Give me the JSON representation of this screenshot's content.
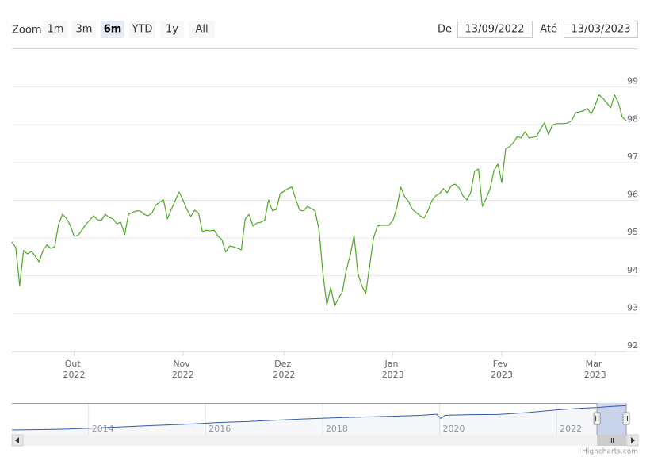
{
  "range_selector": {
    "zoom_label": "Zoom",
    "buttons": [
      "1m",
      "3m",
      "6m",
      "YTD",
      "1y",
      "All"
    ],
    "selected": 2,
    "from_label": "De",
    "from": "13/09/2022",
    "to_label": "Até",
    "to": "13/03/2023"
  },
  "chart_data": {
    "type": "line",
    "color": "#4fa826",
    "values": [
      94.9,
      94.75,
      93.74,
      94.67,
      94.58,
      94.65,
      94.52,
      94.37,
      94.67,
      94.82,
      94.73,
      94.77,
      95.36,
      95.63,
      95.53,
      95.34,
      95.05,
      95.07,
      95.21,
      95.36,
      95.47,
      95.59,
      95.49,
      95.47,
      95.63,
      95.55,
      95.51,
      95.38,
      95.42,
      95.09,
      95.63,
      95.68,
      95.72,
      95.72,
      95.63,
      95.59,
      95.66,
      95.87,
      95.95,
      96.01,
      95.51,
      95.76,
      95.99,
      96.22,
      96.01,
      95.76,
      95.57,
      95.74,
      95.66,
      95.17,
      95.21,
      95.19,
      95.21,
      95.05,
      94.96,
      94.63,
      94.79,
      94.77,
      94.73,
      94.69,
      95.51,
      95.63,
      95.32,
      95.4,
      95.42,
      95.47,
      96.01,
      95.72,
      95.76,
      96.18,
      96.24,
      96.31,
      96.35,
      96.03,
      95.74,
      95.72,
      95.84,
      95.78,
      95.72,
      95.21,
      94.06,
      93.22,
      93.7,
      93.2,
      93.41,
      93.58,
      94.16,
      94.54,
      95.07,
      94.06,
      93.74,
      93.53,
      94.25,
      95.0,
      95.32,
      95.34,
      95.34,
      95.34,
      95.47,
      95.8,
      96.35,
      96.1,
      95.97,
      95.76,
      95.68,
      95.59,
      95.53,
      95.72,
      95.99,
      96.12,
      96.18,
      96.31,
      96.2,
      96.39,
      96.43,
      96.33,
      96.12,
      96.01,
      96.2,
      96.77,
      96.83,
      95.84,
      96.05,
      96.31,
      96.79,
      96.96,
      96.47,
      97.36,
      97.42,
      97.53,
      97.69,
      97.65,
      97.82,
      97.65,
      97.67,
      97.69,
      97.9,
      98.05,
      97.74,
      97.99,
      98.03,
      98.03,
      98.03,
      98.05,
      98.11,
      98.32,
      98.34,
      98.37,
      98.43,
      98.28,
      98.51,
      98.79,
      98.7,
      98.58,
      98.45,
      98.79,
      98.58,
      98.2,
      98.11
    ],
    "xlim": [
      0,
      158
    ],
    "ylim": [
      92,
      100
    ],
    "yticks": [
      92,
      93,
      94,
      95,
      96,
      97,
      98,
      99
    ],
    "grid": true,
    "xticks": [
      {
        "value": 16,
        "label": "Out 2022"
      },
      {
        "value": 44,
        "label": "Nov 2022"
      },
      {
        "value": 70,
        "label": "Dez 2022"
      },
      {
        "value": 98,
        "label": "Jan 2023"
      },
      {
        "value": 126,
        "label": "Fev 2023"
      },
      {
        "value": 150,
        "label": "Mar 2023"
      }
    ],
    "navigator": {
      "color": "#335cad",
      "x": [
        2012.69,
        2013.5,
        2014.2,
        2015,
        2015.7,
        2016.2,
        2016.7,
        2017.2,
        2017.7,
        2018.2,
        2018.7,
        2019.2,
        2019.7,
        2019.95,
        2020.02,
        2020.1,
        2020.5,
        2021,
        2021.5,
        2022,
        2022.4,
        2022.69,
        2022.95,
        2023.19
      ],
      "values": [
        74.5,
        75.2,
        76.5,
        78.5,
        80,
        81.5,
        82.5,
        83.8,
        85,
        86,
        86.8,
        87.5,
        88.5,
        89.5,
        85.5,
        88.5,
        89,
        89.2,
        91,
        93.5,
        95,
        95.8,
        96.8,
        97.5
      ],
      "xlim": [
        2012.69,
        2023.19
      ],
      "ylim": [
        70,
        100
      ],
      "xticks": [
        2014,
        2016,
        2018,
        2020,
        2022
      ],
      "range": [
        2022.69,
        2023.19
      ]
    }
  },
  "credits": "Highcharts.com"
}
